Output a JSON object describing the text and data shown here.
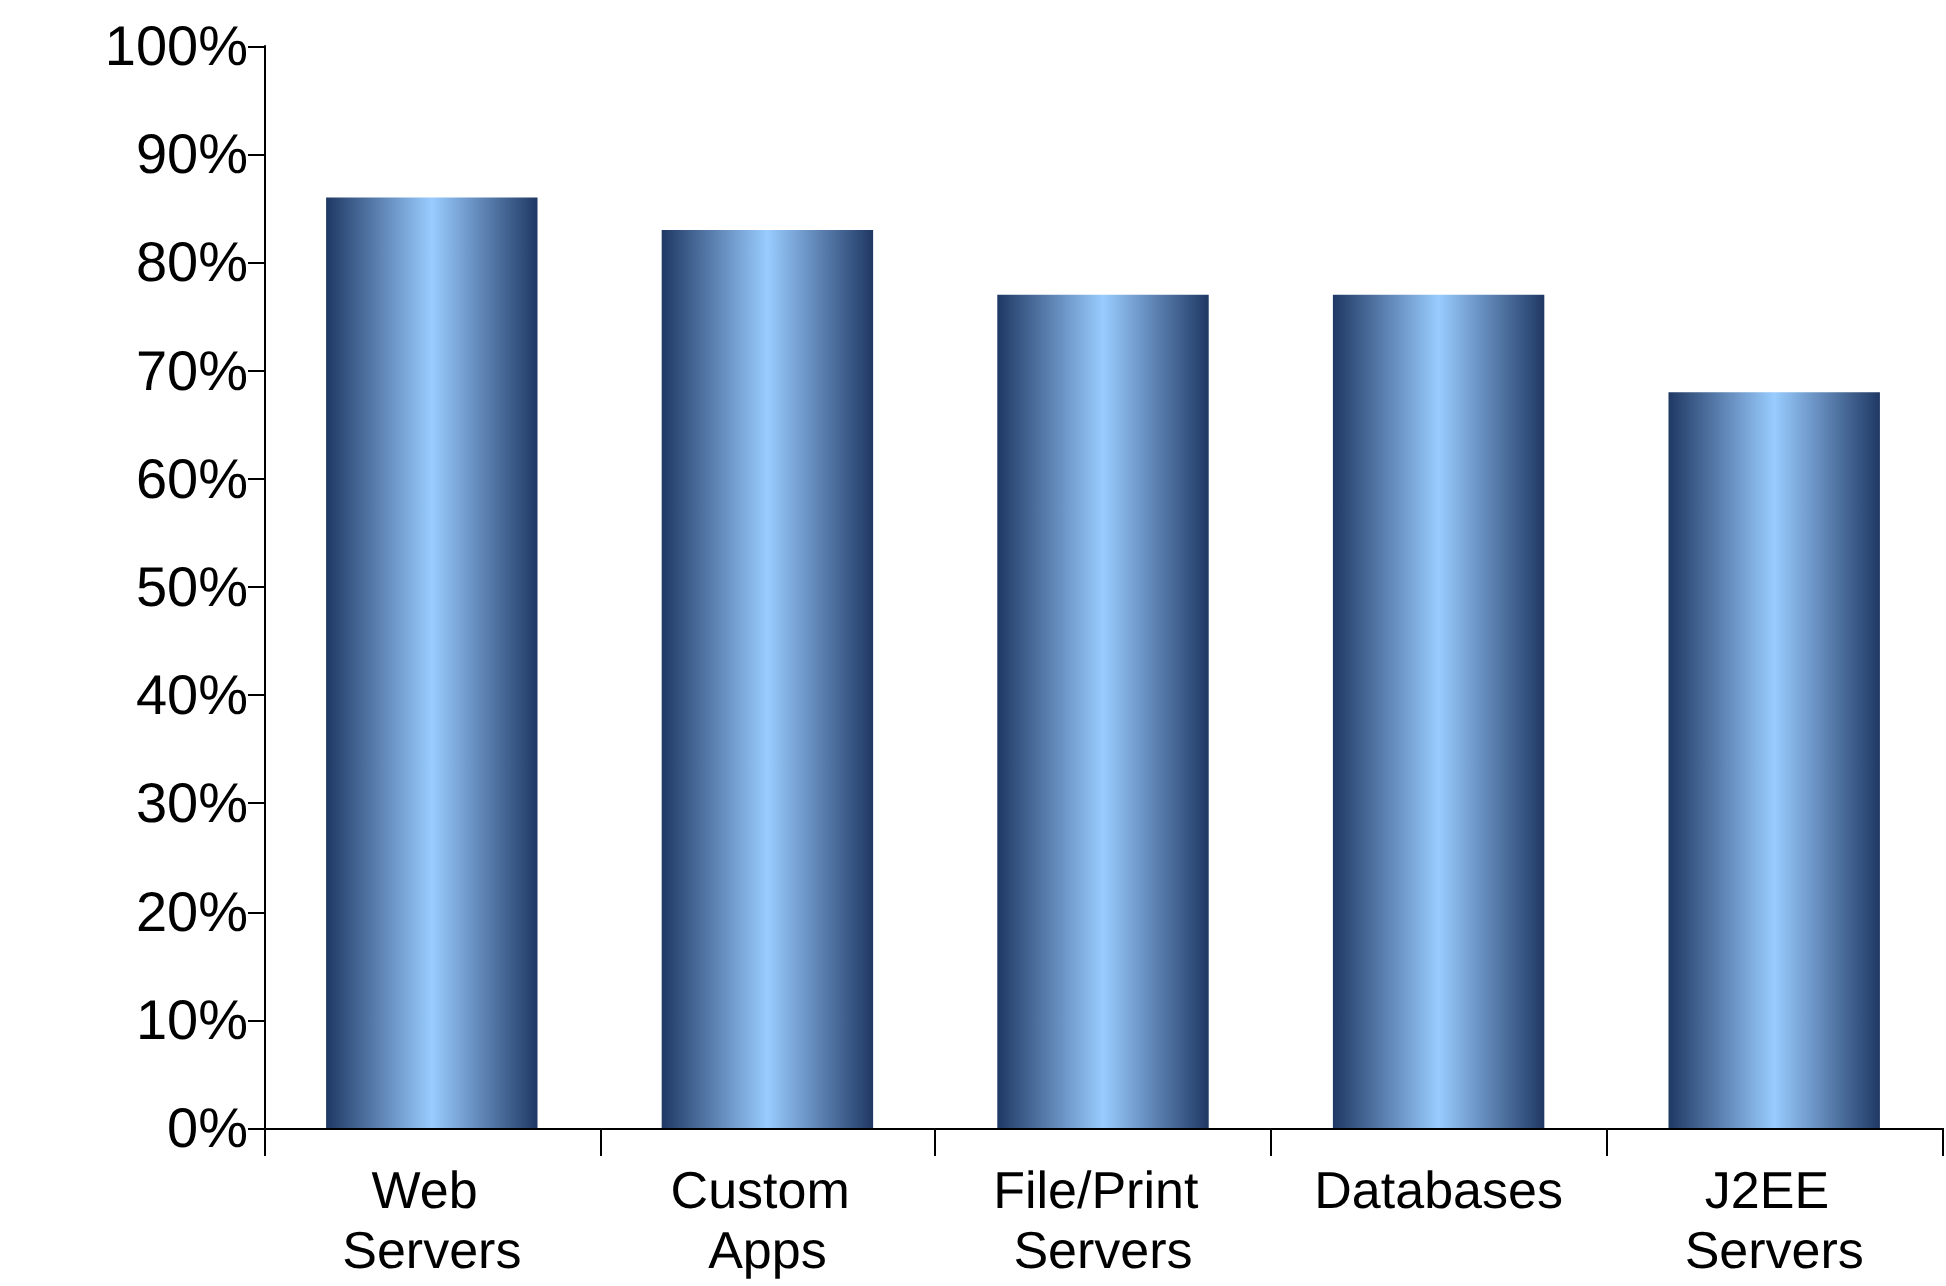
{
  "chart_data": {
    "type": "bar",
    "categories": [
      "Web Servers",
      "Custom Apps",
      "File/Print Servers",
      "Databases",
      "J2EE Servers"
    ],
    "values": [
      86,
      83,
      77,
      77,
      68
    ],
    "color": "#99ccff",
    "ylim": [
      0,
      100
    ],
    "yticks": [
      {
        "value": 0,
        "label": "0%"
      },
      {
        "value": 10,
        "label": "10%"
      },
      {
        "value": 20,
        "label": "20%"
      },
      {
        "value": 30,
        "label": "30%"
      },
      {
        "value": 40,
        "label": "40%"
      },
      {
        "value": 50,
        "label": "50%"
      },
      {
        "value": 60,
        "label": "60%"
      },
      {
        "value": 70,
        "label": "70%"
      },
      {
        "value": 80,
        "label": "80%"
      },
      {
        "value": 90,
        "label": "90%"
      },
      {
        "value": 100,
        "label": "100%"
      }
    ],
    "grid": false
  }
}
